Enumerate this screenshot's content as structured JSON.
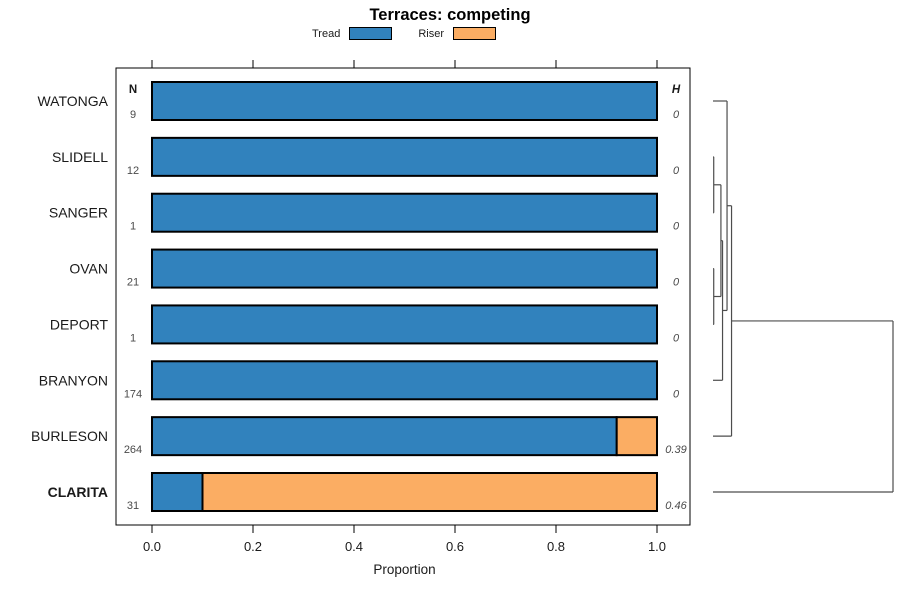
{
  "title": "Terraces: competing",
  "legend": [
    {
      "label": "Tread",
      "color": "#3182bd"
    },
    {
      "label": "Riser",
      "color": "#fbad63"
    }
  ],
  "columns": {
    "n_header": "N",
    "h_header": "H"
  },
  "axis": {
    "label": "Proportion"
  },
  "chart_data": {
    "type": "bar",
    "orientation": "horizontal",
    "stacked": true,
    "title": "Terraces: competing",
    "xlabel": "Proportion",
    "xlim": [
      0,
      1
    ],
    "xticks": [
      0,
      0.2,
      0.4,
      0.6,
      0.8,
      1.0
    ],
    "xtick_labels": [
      "0.0",
      "0.2",
      "0.4",
      "0.6",
      "0.8",
      "1.0"
    ],
    "categories": [
      "WATONGA",
      "SLIDELL",
      "SANGER",
      "OVAN",
      "DEPORT",
      "BRANYON",
      "BURLESON",
      "CLARITA"
    ],
    "series": [
      {
        "name": "Tread",
        "color": "#3182bd",
        "values": [
          1.0,
          1.0,
          1.0,
          1.0,
          1.0,
          1.0,
          0.92,
          0.1
        ]
      },
      {
        "name": "Riser",
        "color": "#fbad63",
        "values": [
          0,
          0,
          0,
          0,
          0,
          0,
          0.08,
          0.9
        ]
      }
    ],
    "n_values": [
      9,
      12,
      1,
      21,
      1,
      174,
      264,
      31
    ],
    "h_values": [
      "0",
      "0",
      "0",
      "0",
      "0",
      "0",
      "0.39",
      "0.46"
    ],
    "bold_categories": [
      "CLARITA"
    ],
    "legend_position": "top",
    "grid": false
  },
  "dendrogram": {
    "tree": {
      "h": 1.0,
      "children": [
        {
          "h": 0.103,
          "children": [
            {
              "h": 0.078,
              "children": [
                {
                  "leaf": "WATONGA"
                },
                {
                  "h": 0.053,
                  "children": [
                    {
                      "h": 0.044,
                      "children": [
                        {
                          "h": 0.004,
                          "children": [
                            {
                              "leaf": "SLIDELL"
                            },
                            {
                              "leaf": "SANGER"
                            }
                          ]
                        },
                        {
                          "h": 0.004,
                          "children": [
                            {
                              "leaf": "OVAN"
                            },
                            {
                              "leaf": "DEPORT"
                            }
                          ]
                        }
                      ]
                    },
                    {
                      "leaf": "BRANYON"
                    }
                  ]
                }
              ]
            },
            {
              "leaf": "BURLESON"
            }
          ]
        },
        {
          "leaf": "CLARITA"
        }
      ]
    }
  },
  "colors": {
    "tread": "#3182bd",
    "riser": "#fbad63",
    "bar_border": "#000000",
    "frame": "#000000",
    "dendro_line": "#4d4d4d",
    "value_text": "#4a4a4a",
    "label_text": "#1a1a1a"
  }
}
